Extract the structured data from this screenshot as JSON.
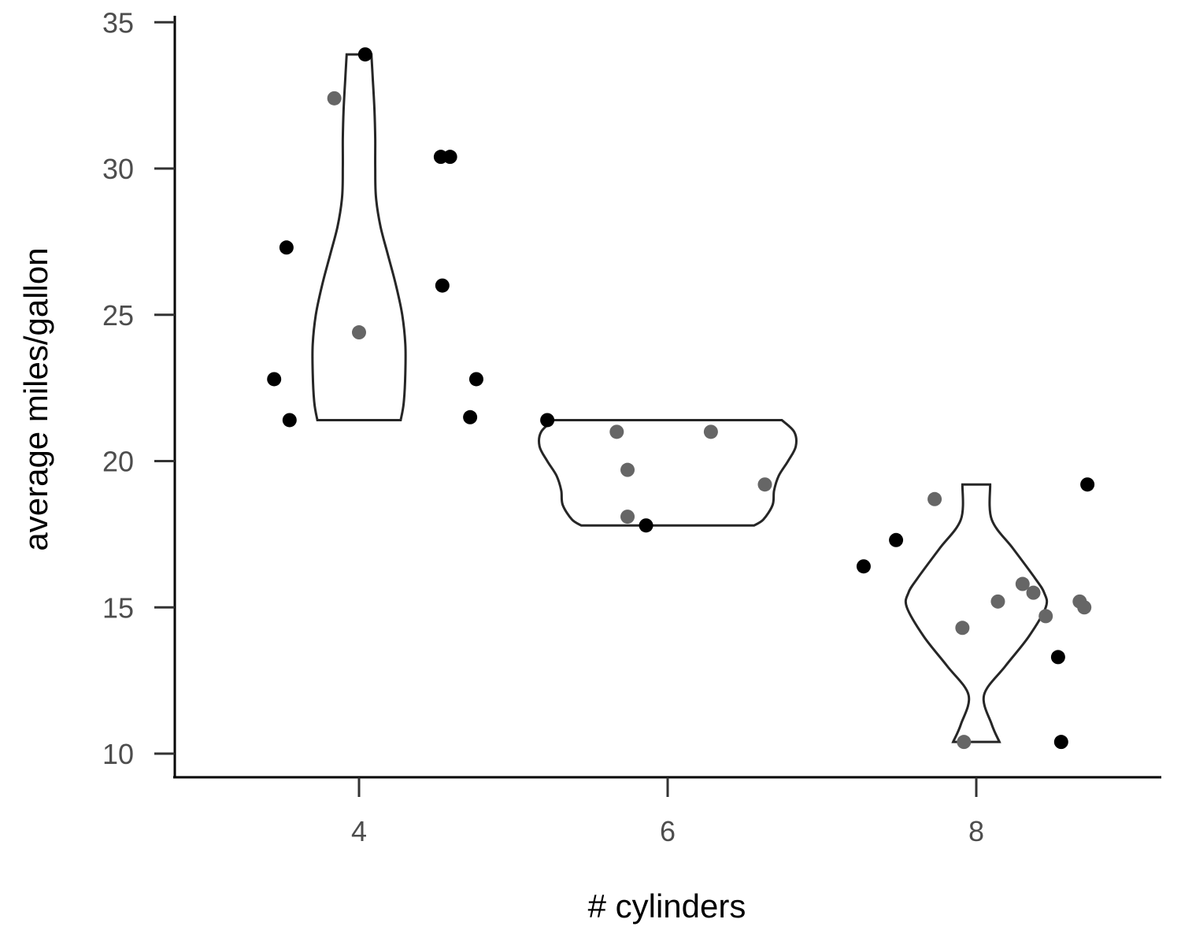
{
  "chart_data": {
    "type": "violin",
    "xlabel": "# cylinders",
    "ylabel": "average miles/gallon",
    "xlim": [
      2.8,
      9.2
    ],
    "ylim": [
      9.3,
      35
    ],
    "x_ticks": [
      4,
      6,
      8
    ],
    "y_ticks": [
      10,
      15,
      20,
      25,
      30,
      35
    ],
    "grid": false,
    "legend": "none",
    "colors": {
      "point_outside": "#000000",
      "point_inside": "#666666",
      "violin_stroke": "#262626"
    },
    "violins": [
      {
        "group": 4,
        "min": 21.4,
        "max": 33.9,
        "profile": [
          [
            21.4,
            0.27
          ],
          [
            22.0,
            0.29
          ],
          [
            23.0,
            0.3
          ],
          [
            24.0,
            0.3
          ],
          [
            25.0,
            0.28
          ],
          [
            26.0,
            0.24
          ],
          [
            27.0,
            0.19
          ],
          [
            28.0,
            0.14
          ],
          [
            29.0,
            0.11
          ],
          [
            30.0,
            0.105
          ],
          [
            31.0,
            0.105
          ],
          [
            32.0,
            0.1
          ],
          [
            33.0,
            0.09
          ],
          [
            33.9,
            0.08
          ]
        ]
      },
      {
        "group": 6,
        "min": 17.8,
        "max": 21.4,
        "profile": [
          [
            17.8,
            0.56
          ],
          [
            18.0,
            0.62
          ],
          [
            18.5,
            0.68
          ],
          [
            19.0,
            0.69
          ],
          [
            19.5,
            0.72
          ],
          [
            20.0,
            0.78
          ],
          [
            20.5,
            0.83
          ],
          [
            21.0,
            0.82
          ],
          [
            21.4,
            0.74
          ]
        ]
      },
      {
        "group": 8,
        "min": 10.4,
        "max": 19.2,
        "profile": [
          [
            10.4,
            0.15
          ],
          [
            11.0,
            0.1
          ],
          [
            12.0,
            0.05
          ],
          [
            13.0,
            0.19
          ],
          [
            14.0,
            0.34
          ],
          [
            15.0,
            0.45
          ],
          [
            15.5,
            0.44
          ],
          [
            16.0,
            0.38
          ],
          [
            17.0,
            0.24
          ],
          [
            18.0,
            0.1
          ],
          [
            19.2,
            0.09
          ]
        ]
      }
    ],
    "points": [
      {
        "x": 3.45,
        "y": 22.8,
        "inside": false
      },
      {
        "x": 3.53,
        "y": 27.3,
        "inside": false
      },
      {
        "x": 3.55,
        "y": 21.4,
        "inside": false
      },
      {
        "x": 3.84,
        "y": 32.4,
        "inside": true
      },
      {
        "x": 4.0,
        "y": 24.4,
        "inside": true
      },
      {
        "x": 4.04,
        "y": 33.9,
        "inside": false
      },
      {
        "x": 4.53,
        "y": 30.4,
        "inside": false
      },
      {
        "x": 4.59,
        "y": 30.4,
        "inside": false
      },
      {
        "x": 4.54,
        "y": 26.0,
        "inside": false
      },
      {
        "x": 4.72,
        "y": 21.5,
        "inside": false
      },
      {
        "x": 4.76,
        "y": 22.8,
        "inside": false
      },
      {
        "x": 5.22,
        "y": 21.4,
        "inside": false
      },
      {
        "x": 5.67,
        "y": 21.0,
        "inside": true
      },
      {
        "x": 5.74,
        "y": 19.7,
        "inside": true
      },
      {
        "x": 5.74,
        "y": 18.1,
        "inside": true
      },
      {
        "x": 5.86,
        "y": 17.8,
        "inside": false
      },
      {
        "x": 6.28,
        "y": 21.0,
        "inside": true
      },
      {
        "x": 6.63,
        "y": 19.2,
        "inside": true
      },
      {
        "x": 7.27,
        "y": 16.4,
        "inside": false
      },
      {
        "x": 7.48,
        "y": 17.3,
        "inside": false
      },
      {
        "x": 7.73,
        "y": 18.7,
        "inside": true
      },
      {
        "x": 7.91,
        "y": 14.3,
        "inside": true
      },
      {
        "x": 7.92,
        "y": 10.4,
        "inside": true
      },
      {
        "x": 8.14,
        "y": 15.2,
        "inside": true
      },
      {
        "x": 8.3,
        "y": 15.8,
        "inside": true
      },
      {
        "x": 8.37,
        "y": 15.5,
        "inside": true
      },
      {
        "x": 8.45,
        "y": 14.7,
        "inside": true
      },
      {
        "x": 8.53,
        "y": 13.3,
        "inside": false
      },
      {
        "x": 8.55,
        "y": 10.4,
        "inside": false
      },
      {
        "x": 8.67,
        "y": 15.2,
        "inside": true
      },
      {
        "x": 8.7,
        "y": 15.0,
        "inside": true
      },
      {
        "x": 8.72,
        "y": 19.2,
        "inside": false
      }
    ]
  }
}
